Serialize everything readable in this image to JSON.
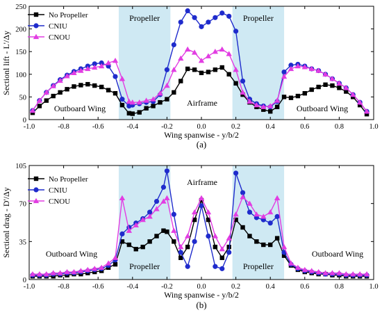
{
  "chart_data": [
    {
      "type": "line",
      "caption": "(a)",
      "xlabel": "Wing spanwise - y/b/2",
      "ylabel": "Sectionl lift - L'/Δy",
      "xlim": [
        -1.0,
        1.0
      ],
      "ylim": [
        0,
        250
      ],
      "xticks": [
        "-1.0",
        "-0.8",
        "-0.6",
        "-0.4",
        "-0.2",
        "0.0",
        "0.2",
        "0.4",
        "0.6",
        "0.8",
        "1.0"
      ],
      "yticks": [
        "0",
        "50",
        "100",
        "150",
        "200",
        "250"
      ],
      "legend_position": "top-left",
      "shaded_regions": [
        {
          "label": "Propeller",
          "x": [
            -0.48,
            -0.18
          ]
        },
        {
          "label": "Propeller",
          "x": [
            0.18,
            0.48
          ]
        }
      ],
      "annotations": [
        "Outboard Wing",
        "Airframe",
        "Outboard Wing"
      ],
      "series": [
        {
          "name": "No Propeller",
          "color": "#000000",
          "marker": "square",
          "x": [
            -0.98,
            -0.94,
            -0.9,
            -0.86,
            -0.82,
            -0.78,
            -0.74,
            -0.7,
            -0.66,
            -0.62,
            -0.58,
            -0.54,
            -0.5,
            -0.46,
            -0.42,
            -0.4,
            -0.36,
            -0.32,
            -0.28,
            -0.24,
            -0.2,
            -0.16,
            -0.12,
            -0.08,
            -0.04,
            0.0,
            0.04,
            0.08,
            0.12,
            0.16,
            0.2,
            0.24,
            0.28,
            0.32,
            0.36,
            0.4,
            0.44,
            0.48,
            0.52,
            0.56,
            0.6,
            0.64,
            0.68,
            0.72,
            0.76,
            0.8,
            0.84,
            0.88,
            0.92,
            0.96
          ],
          "y": [
            15,
            30,
            42,
            52,
            60,
            67,
            73,
            76,
            78,
            75,
            72,
            65,
            58,
            32,
            14,
            13,
            16,
            25,
            30,
            38,
            45,
            60,
            85,
            112,
            110,
            103,
            105,
            110,
            115,
            100,
            80,
            55,
            38,
            28,
            22,
            18,
            28,
            50,
            48,
            52,
            58,
            66,
            72,
            77,
            75,
            70,
            62,
            50,
            32,
            12
          ]
        },
        {
          "name": "CNIU",
          "color": "#1f2bcc",
          "marker": "circle",
          "x": [
            -0.98,
            -0.94,
            -0.9,
            -0.86,
            -0.82,
            -0.78,
            -0.74,
            -0.7,
            -0.66,
            -0.62,
            -0.58,
            -0.54,
            -0.5,
            -0.46,
            -0.42,
            -0.4,
            -0.36,
            -0.32,
            -0.28,
            -0.24,
            -0.2,
            -0.16,
            -0.12,
            -0.08,
            -0.04,
            0.0,
            0.04,
            0.08,
            0.12,
            0.16,
            0.2,
            0.24,
            0.28,
            0.32,
            0.36,
            0.4,
            0.44,
            0.48,
            0.52,
            0.56,
            0.6,
            0.64,
            0.68,
            0.72,
            0.76,
            0.8,
            0.84,
            0.88,
            0.92,
            0.96
          ],
          "y": [
            20,
            42,
            60,
            75,
            88,
            98,
            106,
            112,
            118,
            123,
            125,
            118,
            95,
            45,
            30,
            32,
            35,
            38,
            40,
            55,
            110,
            165,
            215,
            240,
            225,
            205,
            215,
            225,
            235,
            228,
            195,
            85,
            45,
            35,
            30,
            28,
            40,
            105,
            120,
            122,
            118,
            112,
            108,
            100,
            90,
            80,
            70,
            55,
            38,
            18
          ]
        },
        {
          "name": "CNOU",
          "color": "#e23de2",
          "marker": "triangle",
          "x": [
            -0.98,
            -0.94,
            -0.9,
            -0.86,
            -0.82,
            -0.78,
            -0.74,
            -0.7,
            -0.66,
            -0.62,
            -0.58,
            -0.54,
            -0.5,
            -0.46,
            -0.42,
            -0.4,
            -0.36,
            -0.32,
            -0.28,
            -0.24,
            -0.2,
            -0.16,
            -0.12,
            -0.08,
            -0.04,
            0.0,
            0.04,
            0.08,
            0.12,
            0.16,
            0.2,
            0.24,
            0.28,
            0.32,
            0.36,
            0.4,
            0.44,
            0.48,
            0.52,
            0.56,
            0.6,
            0.64,
            0.68,
            0.72,
            0.76,
            0.8,
            0.84,
            0.88,
            0.92,
            0.96
          ],
          "y": [
            20,
            42,
            60,
            74,
            86,
            96,
            103,
            108,
            112,
            115,
            118,
            125,
            130,
            90,
            40,
            38,
            38,
            42,
            45,
            58,
            75,
            110,
            135,
            155,
            148,
            130,
            140,
            150,
            155,
            145,
            110,
            60,
            40,
            32,
            28,
            30,
            42,
            95,
            112,
            118,
            116,
            112,
            108,
            100,
            90,
            80,
            70,
            55,
            38,
            18
          ]
        }
      ]
    },
    {
      "type": "line",
      "caption": "(b)",
      "xlabel": "Wing spanwise - y/b/2",
      "ylabel": "Sectionl drag - D'/Δy",
      "xlim": [
        -1.0,
        1.0
      ],
      "ylim": [
        0,
        105
      ],
      "xticks": [
        "-1.0",
        "-0.8",
        "-0.6",
        "-0.4",
        "-0.2",
        "0.0",
        "0.2",
        "0.4",
        "0.6",
        "0.8",
        "1.0"
      ],
      "yticks": [
        "0",
        "35",
        "70",
        "105"
      ],
      "legend_position": "top-left",
      "shaded_regions": [
        {
          "label": "Propeller",
          "x": [
            -0.48,
            -0.18
          ]
        },
        {
          "label": "Propeller",
          "x": [
            0.18,
            0.48
          ]
        }
      ],
      "annotations": [
        "Airframe",
        "Outboard Wing",
        "Outboard Wing"
      ],
      "series": [
        {
          "name": "No Propeller",
          "color": "#000000",
          "marker": "square",
          "x": [
            -0.98,
            -0.94,
            -0.9,
            -0.86,
            -0.82,
            -0.78,
            -0.74,
            -0.7,
            -0.66,
            -0.62,
            -0.58,
            -0.54,
            -0.5,
            -0.46,
            -0.42,
            -0.38,
            -0.34,
            -0.3,
            -0.26,
            -0.22,
            -0.2,
            -0.16,
            -0.12,
            -0.08,
            -0.04,
            0.0,
            0.04,
            0.08,
            0.12,
            0.16,
            0.2,
            0.24,
            0.28,
            0.32,
            0.36,
            0.4,
            0.44,
            0.48,
            0.52,
            0.56,
            0.6,
            0.64,
            0.68,
            0.72,
            0.76,
            0.8,
            0.84,
            0.88,
            0.92,
            0.96
          ],
          "y": [
            3,
            3,
            3,
            3,
            4,
            4,
            5,
            5,
            6,
            7,
            8,
            11,
            14,
            35,
            32,
            28,
            30,
            35,
            40,
            45,
            44,
            35,
            20,
            30,
            55,
            73,
            55,
            30,
            20,
            30,
            55,
            48,
            40,
            35,
            32,
            32,
            38,
            22,
            13,
            9,
            7,
            6,
            5,
            5,
            4,
            4,
            3,
            3,
            3,
            3
          ]
        },
        {
          "name": "CNIU",
          "color": "#1f2bcc",
          "marker": "circle",
          "x": [
            -0.98,
            -0.94,
            -0.9,
            -0.86,
            -0.82,
            -0.78,
            -0.74,
            -0.7,
            -0.66,
            -0.62,
            -0.58,
            -0.54,
            -0.5,
            -0.46,
            -0.42,
            -0.38,
            -0.34,
            -0.3,
            -0.26,
            -0.22,
            -0.2,
            -0.16,
            -0.12,
            -0.08,
            -0.04,
            0.0,
            0.04,
            0.08,
            0.12,
            0.16,
            0.2,
            0.24,
            0.28,
            0.32,
            0.36,
            0.4,
            0.44,
            0.48,
            0.52,
            0.56,
            0.6,
            0.64,
            0.68,
            0.72,
            0.76,
            0.8,
            0.84,
            0.88,
            0.92,
            0.96
          ],
          "y": [
            4,
            4,
            4,
            5,
            5,
            6,
            6,
            7,
            8,
            9,
            10,
            13,
            18,
            42,
            48,
            52,
            56,
            62,
            72,
            85,
            100,
            60,
            25,
            12,
            35,
            68,
            40,
            12,
            10,
            25,
            98,
            80,
            62,
            57,
            55,
            52,
            58,
            25,
            14,
            10,
            8,
            7,
            6,
            5,
            5,
            5,
            4,
            4,
            4,
            4
          ]
        },
        {
          "name": "CNOU",
          "color": "#e23de2",
          "marker": "triangle",
          "x": [
            -0.98,
            -0.94,
            -0.9,
            -0.86,
            -0.82,
            -0.78,
            -0.74,
            -0.7,
            -0.66,
            -0.62,
            -0.58,
            -0.54,
            -0.5,
            -0.46,
            -0.42,
            -0.38,
            -0.34,
            -0.3,
            -0.26,
            -0.22,
            -0.2,
            -0.16,
            -0.12,
            -0.08,
            -0.04,
            0.0,
            0.04,
            0.08,
            0.12,
            0.16,
            0.2,
            0.24,
            0.28,
            0.32,
            0.36,
            0.4,
            0.44,
            0.48,
            0.52,
            0.56,
            0.6,
            0.64,
            0.68,
            0.72,
            0.76,
            0.8,
            0.84,
            0.88,
            0.92,
            0.96
          ],
          "y": [
            5,
            5,
            5,
            6,
            6,
            7,
            7,
            8,
            9,
            10,
            11,
            15,
            20,
            75,
            45,
            50,
            55,
            58,
            65,
            72,
            75,
            45,
            30,
            40,
            62,
            75,
            62,
            40,
            28,
            38,
            60,
            76,
            70,
            60,
            58,
            62,
            75,
            30,
            15,
            11,
            9,
            8,
            7,
            6,
            6,
            6,
            5,
            5,
            5,
            5
          ]
        }
      ]
    }
  ]
}
